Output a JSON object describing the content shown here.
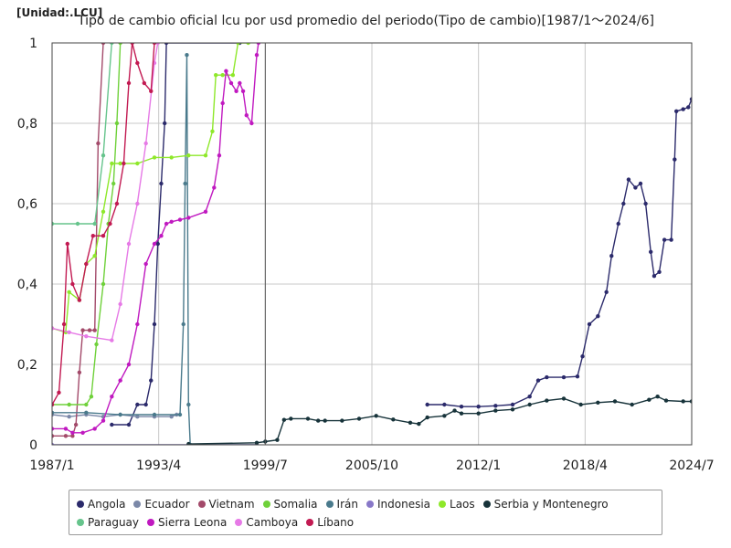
{
  "unit_label": "[Unidad:.LCU]",
  "chart_data": {
    "type": "line",
    "title": "Tipo de cambio oficial lcu por usd promedio del periodo(Tipo de cambio)[1987/1〜2024/6]",
    "xlabel": "",
    "ylabel": "",
    "ylim": [
      0,
      1
    ],
    "xlim": [
      1987.0,
      2024.5
    ],
    "y_ticks": [
      "0",
      "0,2",
      "0,4",
      "0,6",
      "0,8",
      "1"
    ],
    "x_ticks": [
      {
        "label": "1987/1",
        "value": 1987.0
      },
      {
        "label": "1993/4",
        "value": 1993.25
      },
      {
        "label": "1999/7",
        "value": 1999.5
      },
      {
        "label": "2005/10",
        "value": 2005.75
      },
      {
        "label": "2012/1",
        "value": 2012.0
      },
      {
        "label": "2018/4",
        "value": 2018.25
      },
      {
        "label": "2024/7",
        "value": 2024.5
      }
    ],
    "grid": true,
    "legend_position": "bottom",
    "series": [
      {
        "name": "Angola",
        "color": "#2b2a6b",
        "points": [
          [
            1990.5,
            0.05
          ],
          [
            1991.5,
            0.05
          ],
          [
            1992.0,
            0.1
          ],
          [
            1992.5,
            0.1
          ],
          [
            1992.8,
            0.16
          ],
          [
            1993.0,
            0.3
          ],
          [
            1993.2,
            0.5
          ],
          [
            1993.4,
            0.65
          ],
          [
            1993.6,
            0.8
          ],
          [
            1993.7,
            1.0
          ],
          [
            1998.0,
            1.0
          ]
        ]
      },
      {
        "name": "Ecuador",
        "color": "#7b88a8",
        "points": [
          [
            1987.0,
            0.075
          ],
          [
            1988.0,
            0.07
          ],
          [
            1989.0,
            0.075
          ],
          [
            1990.0,
            0.07
          ],
          [
            1991.0,
            0.075
          ],
          [
            1992.0,
            0.07
          ],
          [
            1993.0,
            0.07
          ],
          [
            1994.0,
            0.07
          ],
          [
            1994.3,
            0.075
          ]
        ]
      },
      {
        "name": "Vietnam",
        "color": "#a34a6a",
        "points": [
          [
            1987.0,
            0.022
          ],
          [
            1987.8,
            0.022
          ],
          [
            1988.2,
            0.022
          ],
          [
            1988.4,
            0.05
          ],
          [
            1988.6,
            0.18
          ],
          [
            1988.8,
            0.285
          ],
          [
            1989.2,
            0.285
          ],
          [
            1989.5,
            0.285
          ],
          [
            1989.7,
            0.75
          ],
          [
            1990.0,
            1.0
          ]
        ]
      },
      {
        "name": "Somalia",
        "color": "#6fd13a",
        "points": [
          [
            1987.0,
            0.1
          ],
          [
            1988.0,
            0.1
          ],
          [
            1989.0,
            0.1
          ],
          [
            1989.3,
            0.12
          ],
          [
            1989.6,
            0.25
          ],
          [
            1990.0,
            0.4
          ],
          [
            1990.3,
            0.55
          ],
          [
            1990.6,
            0.65
          ],
          [
            1990.8,
            0.8
          ],
          [
            1991.0,
            1.0
          ]
        ]
      },
      {
        "name": "Irán",
        "color": "#4a7a8c",
        "points": [
          [
            1987.0,
            0.08
          ],
          [
            1989.0,
            0.08
          ],
          [
            1991.0,
            0.075
          ],
          [
            1993.0,
            0.075
          ],
          [
            1994.5,
            0.075
          ],
          [
            1994.7,
            0.3
          ],
          [
            1994.8,
            0.65
          ],
          [
            1994.9,
            0.97
          ],
          [
            1995.0,
            0.1
          ],
          [
            1995.1,
            0.0
          ],
          [
            1999.0,
            0.0
          ]
        ]
      },
      {
        "name": "Indonesia",
        "color": "#8878c8",
        "points": [
          [
            1987.0,
            0.0
          ],
          [
            1999.0,
            0.0
          ]
        ]
      },
      {
        "name": "Laos",
        "color": "#8ee82a",
        "points": [
          [
            1987.0,
            0.29
          ],
          [
            1987.8,
            0.28
          ],
          [
            1988.0,
            0.38
          ],
          [
            1988.6,
            0.36
          ],
          [
            1989.0,
            0.45
          ],
          [
            1989.5,
            0.47
          ],
          [
            1990.0,
            0.58
          ],
          [
            1990.5,
            0.7
          ],
          [
            1991.0,
            0.7
          ],
          [
            1992.0,
            0.7
          ],
          [
            1993.0,
            0.715
          ],
          [
            1994.0,
            0.715
          ],
          [
            1995.0,
            0.72
          ],
          [
            1996.0,
            0.72
          ],
          [
            1996.4,
            0.78
          ],
          [
            1996.6,
            0.92
          ],
          [
            1997.0,
            0.92
          ],
          [
            1997.6,
            0.92
          ],
          [
            1997.9,
            1.0
          ],
          [
            1998.5,
            1.0
          ]
        ]
      },
      {
        "name": "Serbia y Montenegro",
        "color": "#17333a",
        "points": [
          [
            1995.0,
            0.002
          ],
          [
            1999.0,
            0.005
          ],
          [
            1999.5,
            0.008
          ],
          [
            2000.2,
            0.012
          ],
          [
            2000.6,
            0.062
          ],
          [
            2001.0,
            0.065
          ],
          [
            2002.0,
            0.065
          ],
          [
            2002.6,
            0.06
          ],
          [
            2003.0,
            0.06
          ],
          [
            2004.0,
            0.06
          ],
          [
            2005.0,
            0.065
          ],
          [
            2006.0,
            0.072
          ],
          [
            2007.0,
            0.063
          ],
          [
            2008.0,
            0.055
          ],
          [
            2008.5,
            0.052
          ],
          [
            2009.0,
            0.068
          ],
          [
            2010.0,
            0.072
          ],
          [
            2010.6,
            0.085
          ],
          [
            2011.0,
            0.078
          ],
          [
            2012.0,
            0.078
          ],
          [
            2013.0,
            0.085
          ],
          [
            2014.0,
            0.088
          ],
          [
            2015.0,
            0.1
          ],
          [
            2016.0,
            0.11
          ],
          [
            2017.0,
            0.115
          ],
          [
            2018.0,
            0.1
          ],
          [
            2019.0,
            0.105
          ],
          [
            2020.0,
            0.108
          ],
          [
            2021.0,
            0.1
          ],
          [
            2022.0,
            0.112
          ],
          [
            2022.5,
            0.12
          ],
          [
            2023.0,
            0.11
          ],
          [
            2024.0,
            0.108
          ],
          [
            2024.5,
            0.108
          ]
        ]
      },
      {
        "name": "Paraguay",
        "color": "#66c48c",
        "points": [
          [
            1987.0,
            0.55
          ],
          [
            1988.5,
            0.55
          ],
          [
            1989.5,
            0.55
          ],
          [
            1990.0,
            0.72
          ],
          [
            1990.5,
            1.0
          ]
        ]
      },
      {
        "name": "Sierra Leona",
        "color": "#c019c0",
        "points": [
          [
            1987.0,
            0.04
          ],
          [
            1987.8,
            0.04
          ],
          [
            1988.2,
            0.03
          ],
          [
            1988.8,
            0.03
          ],
          [
            1989.5,
            0.04
          ],
          [
            1990.0,
            0.06
          ],
          [
            1990.5,
            0.12
          ],
          [
            1991.0,
            0.16
          ],
          [
            1991.5,
            0.2
          ],
          [
            1992.0,
            0.3
          ],
          [
            1992.5,
            0.45
          ],
          [
            1993.0,
            0.5
          ],
          [
            1993.4,
            0.52
          ],
          [
            1993.7,
            0.55
          ],
          [
            1994.0,
            0.555
          ],
          [
            1994.5,
            0.56
          ],
          [
            1995.0,
            0.565
          ],
          [
            1996.0,
            0.58
          ],
          [
            1996.5,
            0.64
          ],
          [
            1996.8,
            0.72
          ],
          [
            1997.0,
            0.85
          ],
          [
            1997.2,
            0.93
          ],
          [
            1997.5,
            0.9
          ],
          [
            1997.8,
            0.88
          ],
          [
            1998.0,
            0.9
          ],
          [
            1998.2,
            0.88
          ],
          [
            1998.4,
            0.82
          ],
          [
            1998.7,
            0.8
          ],
          [
            1999.0,
            0.97
          ],
          [
            1999.1,
            1.0
          ]
        ]
      },
      {
        "name": "Camboya",
        "color": "#e67ae6",
        "points": [
          [
            1987.0,
            0.29
          ],
          [
            1988.0,
            0.28
          ],
          [
            1989.0,
            0.27
          ],
          [
            1990.5,
            0.26
          ],
          [
            1991.0,
            0.35
          ],
          [
            1991.5,
            0.5
          ],
          [
            1992.0,
            0.6
          ],
          [
            1992.5,
            0.75
          ],
          [
            1993.0,
            0.95
          ],
          [
            1993.2,
            1.0
          ]
        ]
      },
      {
        "name": "Líbano",
        "color": "#c21a52",
        "points": [
          [
            1987.0,
            0.1
          ],
          [
            1987.4,
            0.13
          ],
          [
            1987.7,
            0.3
          ],
          [
            1987.9,
            0.5
          ],
          [
            1988.2,
            0.4
          ],
          [
            1988.6,
            0.36
          ],
          [
            1989.0,
            0.45
          ],
          [
            1989.4,
            0.52
          ],
          [
            1990.0,
            0.52
          ],
          [
            1990.4,
            0.55
          ],
          [
            1990.8,
            0.6
          ],
          [
            1991.2,
            0.7
          ],
          [
            1991.5,
            0.9
          ],
          [
            1991.7,
            1.0
          ],
          [
            1992.0,
            0.95
          ],
          [
            1992.4,
            0.9
          ],
          [
            1992.8,
            0.88
          ],
          [
            1993.0,
            1.0
          ]
        ]
      }
    ]
  }
}
